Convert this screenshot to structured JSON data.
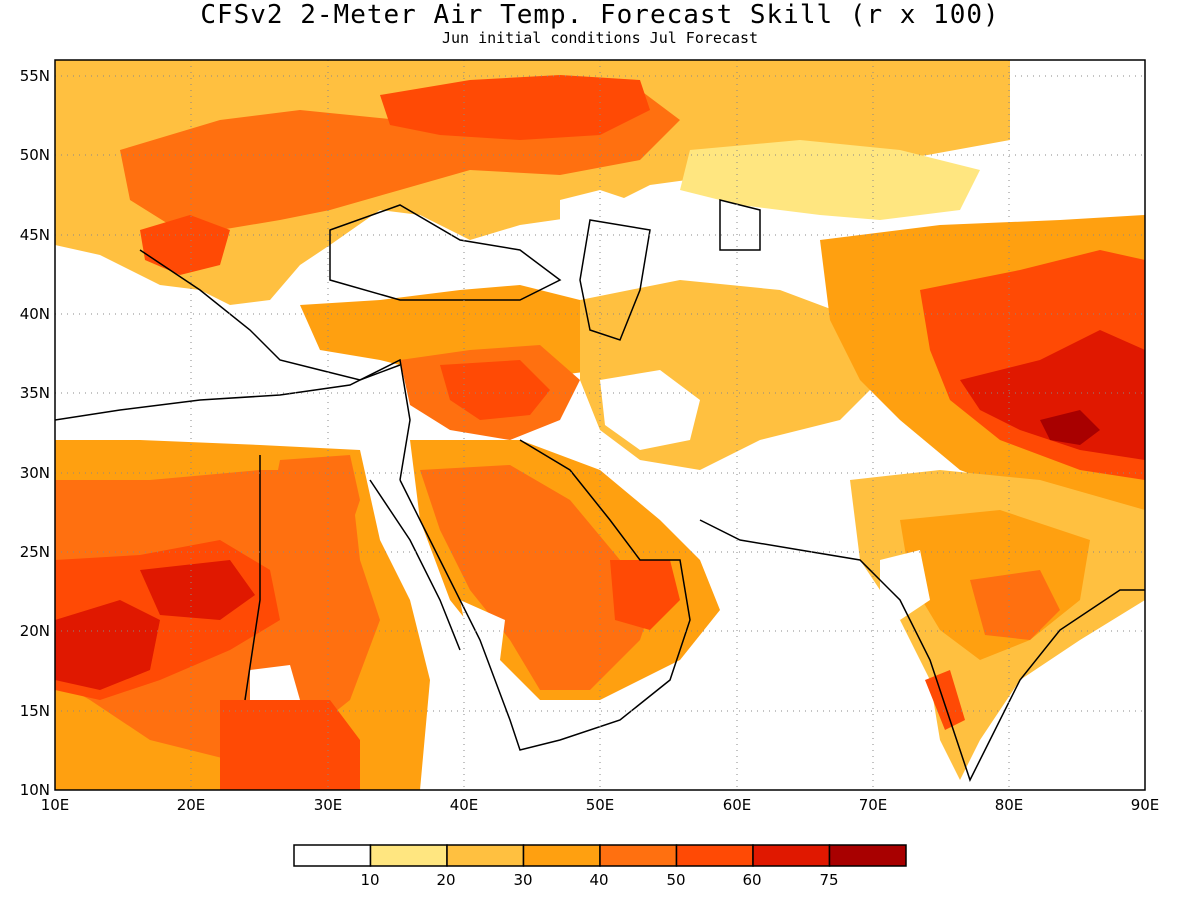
{
  "title": "CFSv2 2-Meter Air Temp. Forecast Skill (r x 100)",
  "subtitle": "Jun initial conditions  Jul Forecast",
  "map": {
    "lon_range": [
      10,
      90
    ],
    "lat_range": [
      10,
      56
    ],
    "lon_ticks": [
      "10E",
      "20E",
      "30E",
      "40E",
      "50E",
      "60E",
      "70E",
      "80E",
      "90E"
    ],
    "lat_ticks": [
      "55N",
      "50N",
      "45N",
      "40N",
      "35N",
      "30N",
      "25N",
      "20N",
      "15N",
      "10N"
    ],
    "grid": "dotted",
    "projection": "lat-lon"
  },
  "legend": {
    "labels": [
      "10",
      "20",
      "30",
      "40",
      "50",
      "60",
      "75"
    ],
    "colors": [
      "#ffffff",
      "#ffe680",
      "#ffc040",
      "#ffa010",
      "#ff7010",
      "#ff4a05",
      "#e01800",
      "#a80000"
    ]
  }
}
